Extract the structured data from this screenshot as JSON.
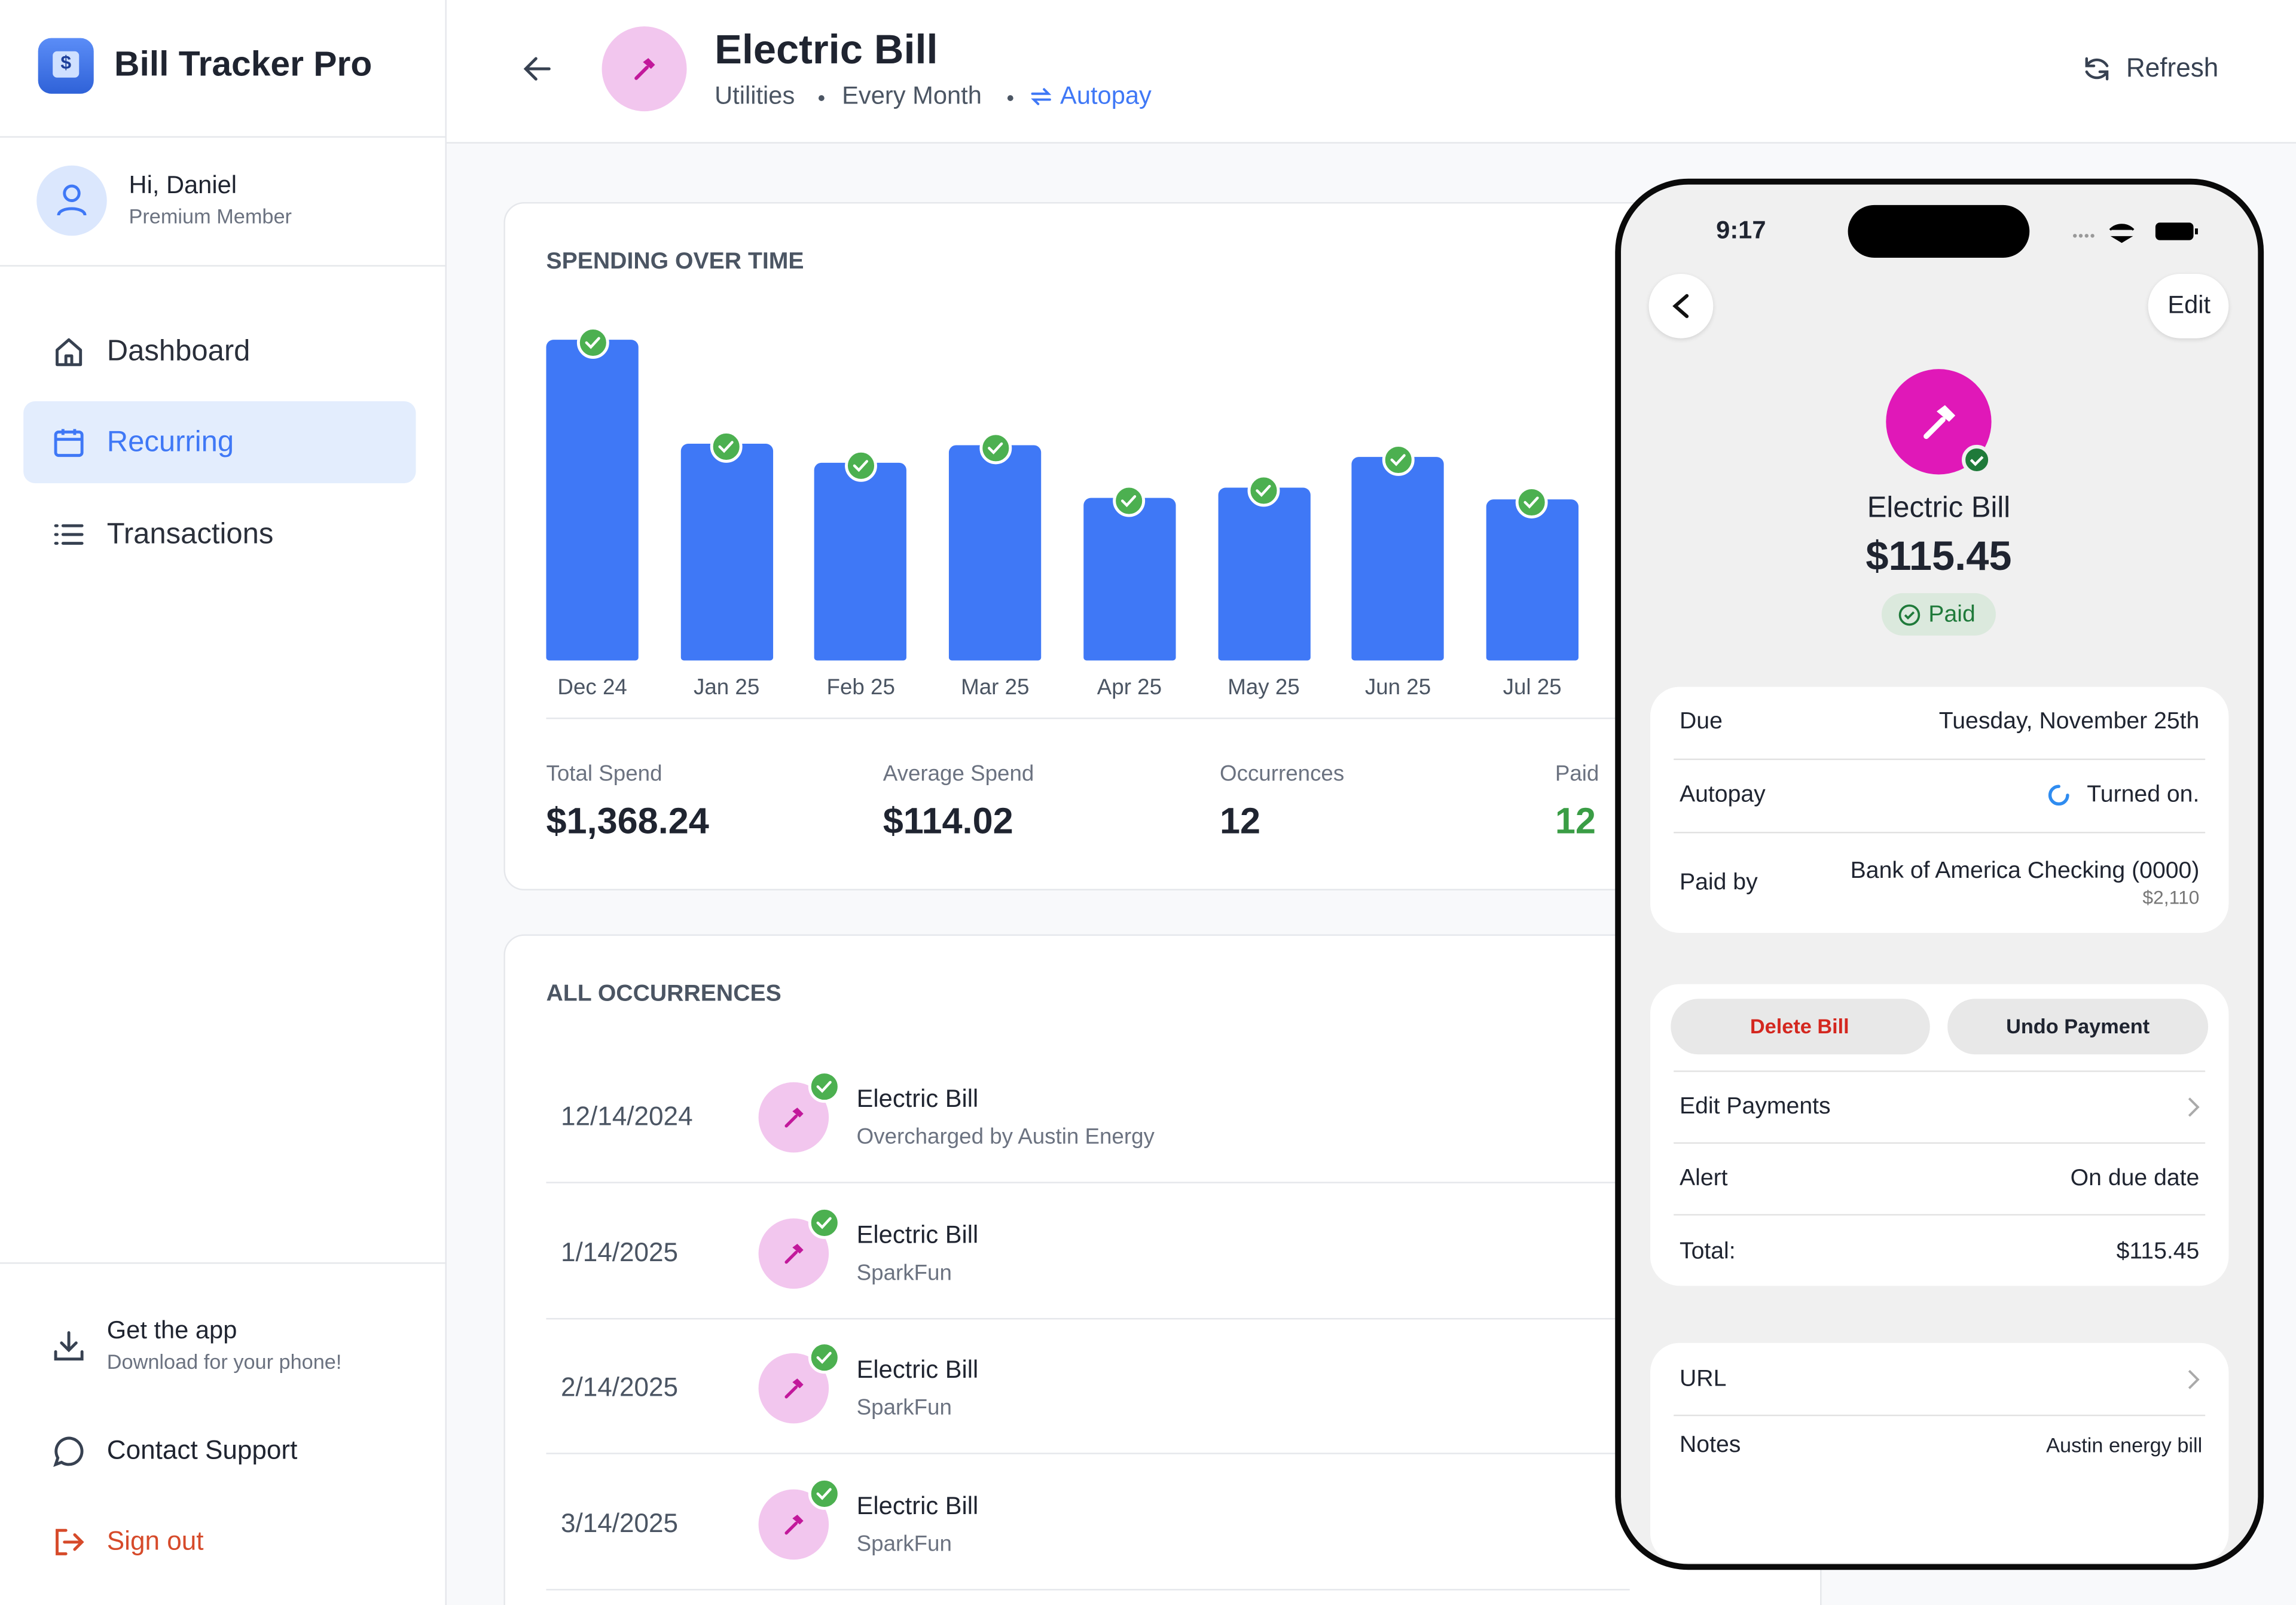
{
  "sidebar": {
    "app_name": "Bill Tracker Pro",
    "greeting": "Hi, Daniel",
    "membership": "Premium Member",
    "nav": [
      "Dashboard",
      "Recurring",
      "Transactions"
    ],
    "get_app": "Get the app",
    "get_app_sub": "Download for your phone!",
    "support": "Contact Support",
    "sign_out": "Sign out"
  },
  "header": {
    "title": "Electric Bill",
    "category": "Utilities",
    "frequency": "Every Month",
    "autopay": "Autopay",
    "refresh": "Refresh"
  },
  "chart_data": {
    "type": "bar",
    "title": "SPENDING OVER TIME",
    "categories": [
      "Dec 24",
      "Jan 25",
      "Feb 25",
      "Mar 25",
      "Apr 25",
      "May 25",
      "Jun 25",
      "Jul 25"
    ],
    "values": [
      177,
      120,
      109,
      119,
      90,
      95,
      112,
      89
    ],
    "color": "#3f78f6"
  },
  "stats": [
    {
      "label": "Total Spend",
      "value": "$1,368.24"
    },
    {
      "label": "Average Spend",
      "value": "$114.02"
    },
    {
      "label": "Occurrences",
      "value": "12"
    },
    {
      "label": "Paid",
      "value": "12"
    }
  ],
  "occurrences": {
    "title": "ALL OCCURRENCES",
    "rows": [
      {
        "date": "12/14/2024",
        "name": "Electric Bill",
        "note": "Overcharged by Austin Energy"
      },
      {
        "date": "1/14/2025",
        "name": "Electric Bill",
        "note": "SparkFun"
      },
      {
        "date": "2/14/2025",
        "name": "Electric Bill",
        "note": "SparkFun"
      },
      {
        "date": "3/14/2025",
        "name": "Electric Bill",
        "note": "SparkFun"
      }
    ]
  },
  "phone": {
    "time": "9:17",
    "edit": "Edit",
    "name": "Electric Bill",
    "amount": "$115.45",
    "status": "Paid",
    "due_label": "Due",
    "due": "Tuesday, November 25th",
    "autopay_label": "Autopay",
    "autopay": "Turned on.",
    "paid_by_label": "Paid by",
    "paid_by": "Bank of America Checking (0000)",
    "balance": "$2,110",
    "delete": "Delete Bill",
    "undo": "Undo Payment",
    "edit_payments": "Edit Payments",
    "alert_label": "Alert",
    "alert": "On due date",
    "total_label": "Total:",
    "total": "$115.45",
    "url_label": "URL",
    "notes_label": "Notes",
    "notes": "Austin energy bill"
  }
}
